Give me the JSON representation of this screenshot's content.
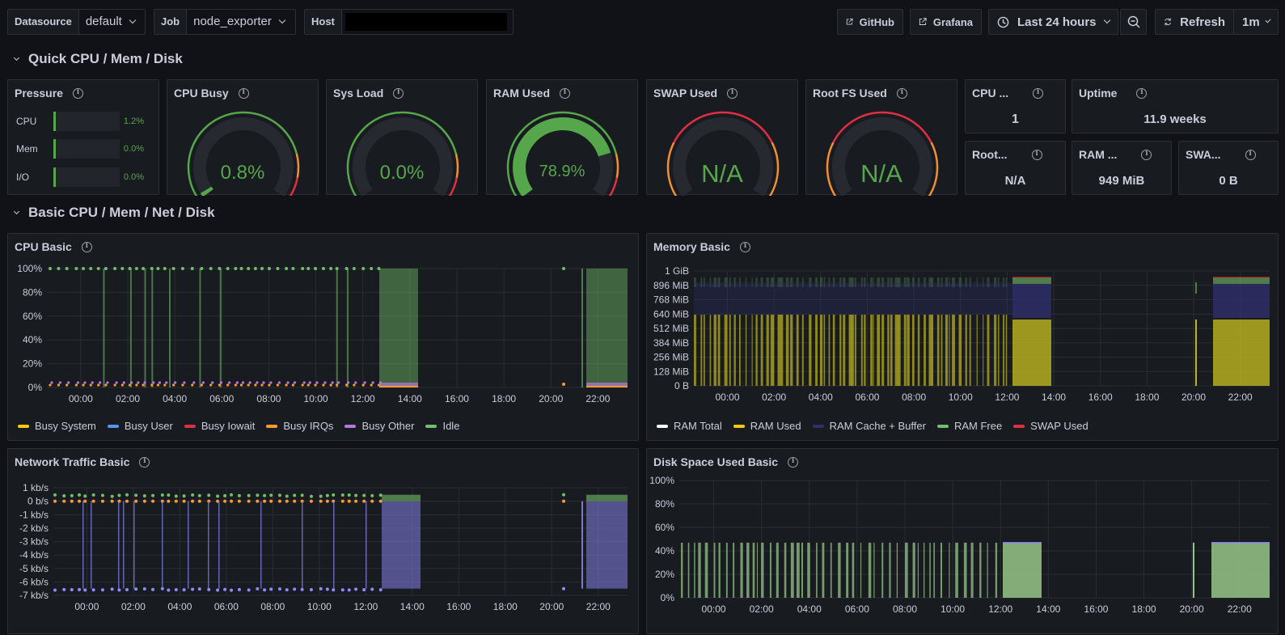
{
  "topbar": {
    "datasource_label": "Datasource",
    "datasource_value": "default",
    "job_label": "Job",
    "job_value": "node_exporter",
    "host_label": "Host",
    "host_value": "",
    "github_label": "GitHub",
    "grafana_label": "Grafana",
    "timerange_label": "Last 24 hours",
    "refresh_label": "Refresh",
    "refresh_interval": "1m"
  },
  "rows": {
    "quick": "Quick CPU / Mem / Disk",
    "basic": "Basic CPU / Mem / Net / Disk"
  },
  "pressure": {
    "title": "Pressure",
    "items": [
      {
        "name": "CPU",
        "value": "1.2%"
      },
      {
        "name": "Mem",
        "value": "0.0%"
      },
      {
        "name": "I/O",
        "value": "0.0%"
      }
    ]
  },
  "gauges": [
    {
      "title": "CPU Busy",
      "value": "0.8%",
      "fraction": 0.008
    },
    {
      "title": "Sys Load",
      "value": "0.0%",
      "fraction": 0.0
    },
    {
      "title": "RAM Used",
      "value": "78.9%",
      "fraction": 0.789
    },
    {
      "title": "SWAP Used",
      "value": "N/A",
      "fraction": null
    },
    {
      "title": "Root FS Used",
      "value": "N/A",
      "fraction": null
    }
  ],
  "stats": {
    "cpu_cores": {
      "title": "CPU ...",
      "value": "1"
    },
    "uptime": {
      "title": "Uptime",
      "value": "11.9 weeks"
    },
    "rootfs": {
      "title": "Root...",
      "value": "N/A"
    },
    "ram_total": {
      "title": "RAM ...",
      "value": "949 MiB"
    },
    "swap_total": {
      "title": "SWA...",
      "value": "0 B"
    }
  },
  "colors": {
    "green": "#56a64b",
    "yellow": "#c0b71f",
    "blue_purple": "#7b78d6",
    "orange": "#f2902f",
    "red": "#e02f44",
    "purple": "#a352cc"
  },
  "panels": {
    "cpu_basic": {
      "title": "CPU Basic",
      "yticks": [
        "100%",
        "80%",
        "60%",
        "40%",
        "20%",
        "0%"
      ],
      "xticks": [
        "00:00",
        "02:00",
        "04:00",
        "06:00",
        "08:00",
        "10:00",
        "12:00",
        "14:00",
        "16:00",
        "18:00",
        "20:00",
        "22:00"
      ],
      "legend": [
        {
          "name": "Busy System",
          "color": "#f2cc0c"
        },
        {
          "name": "Busy User",
          "color": "#5794f2"
        },
        {
          "name": "Busy Iowait",
          "color": "#e02f44"
        },
        {
          "name": "Busy IRQs",
          "color": "#ff9830"
        },
        {
          "name": "Busy Other",
          "color": "#b877d9"
        },
        {
          "name": "Idle",
          "color": "#73bf69"
        }
      ]
    },
    "memory_basic": {
      "title": "Memory Basic",
      "yticks": [
        "1 GiB",
        "896 MiB",
        "768 MiB",
        "640 MiB",
        "512 MiB",
        "384 MiB",
        "256 MiB",
        "128 MiB",
        "0 B"
      ],
      "xticks": [
        "00:00",
        "02:00",
        "04:00",
        "06:00",
        "08:00",
        "10:00",
        "12:00",
        "14:00",
        "16:00",
        "18:00",
        "20:00",
        "22:00"
      ],
      "legend": [
        {
          "name": "RAM Total",
          "color": "#ffffff"
        },
        {
          "name": "RAM Used",
          "color": "#f2cc0c"
        },
        {
          "name": "RAM Cache + Buffer",
          "color": "#2f2f6b"
        },
        {
          "name": "RAM Free",
          "color": "#73bf69"
        },
        {
          "name": "SWAP Used",
          "color": "#e02f44"
        }
      ]
    },
    "network_basic": {
      "title": "Network Traffic Basic",
      "yticks": [
        "1 kb/s",
        "0 b/s",
        "-1 kb/s",
        "-2 kb/s",
        "-3 kb/s",
        "-4 kb/s",
        "-5 kb/s",
        "-6 kb/s",
        "-7 kb/s"
      ],
      "xticks": [
        "00:00",
        "02:00",
        "04:00",
        "06:00",
        "08:00",
        "10:00",
        "12:00",
        "14:00",
        "16:00",
        "18:00",
        "20:00",
        "22:00"
      ]
    },
    "disk_basic": {
      "title": "Disk Space Used Basic",
      "yticks": [
        "100%",
        "80%",
        "60%",
        "40%",
        "20%",
        "0%"
      ],
      "xticks": [
        "00:00",
        "02:00",
        "04:00",
        "06:00",
        "08:00",
        "10:00",
        "12:00",
        "14:00",
        "16:00",
        "18:00",
        "20:00",
        "22:00"
      ]
    }
  }
}
